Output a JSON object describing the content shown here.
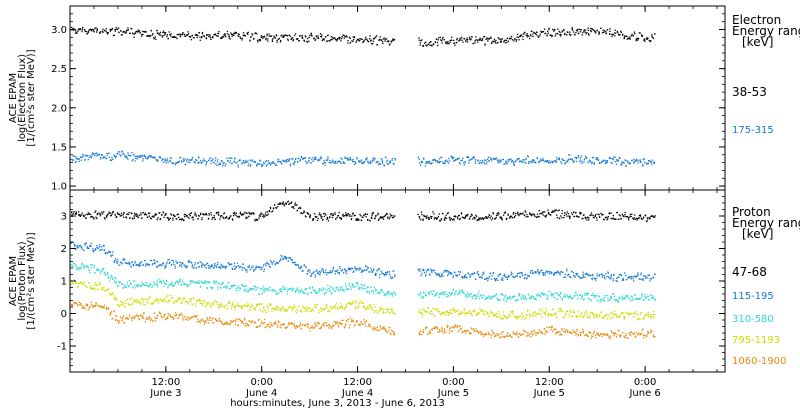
{
  "chart_data": {
    "type": "scatter",
    "xlabel": "hours:minutes, June  3, 2013 - June  6, 2013",
    "x_ticks": [
      {
        "x": "2013-06-03T12:00",
        "time": "12:00",
        "date": "June 3"
      },
      {
        "x": "2013-06-04T00:00",
        "time": "0:00",
        "date": "June 4"
      },
      {
        "x": "2013-06-04T12:00",
        "time": "12:00",
        "date": "June 4"
      },
      {
        "x": "2013-06-05T00:00",
        "time": "0:00",
        "date": "June 5"
      },
      {
        "x": "2013-06-05T12:00",
        "time": "12:00",
        "date": "June 5"
      },
      {
        "x": "2013-06-06T00:00",
        "time": "0:00",
        "date": "June 6"
      }
    ],
    "xlim": [
      "2013-06-03T00:00",
      "2013-06-06T10:00"
    ],
    "data_gap": [
      "2013-06-04T16:30",
      "2013-06-04T19:30"
    ],
    "data_end": "2013-06-06T01:00",
    "panels": [
      {
        "name": "electron",
        "ylabel_lines": [
          "ACE EPAM",
          "log(Electron Flux)",
          "[1/(cm²s ster MeV)]"
        ],
        "ylim": [
          0.95,
          3.3
        ],
        "yticks": [
          "1.0",
          "1.5",
          "2.0",
          "2.5",
          "3.0"
        ],
        "yticks_values": [
          1.0,
          1.5,
          2.0,
          2.5,
          3.0
        ],
        "legend_title": [
          "Electron",
          "Energy range",
          "[keV]"
        ],
        "series": [
          {
            "name": "38-53",
            "color": "#000000",
            "values": [
              [
                "2013-06-03T00:00",
                3.0
              ],
              [
                "2013-06-03T06:00",
                2.98
              ],
              [
                "2013-06-03T12:00",
                2.93
              ],
              [
                "2013-06-03T18:00",
                2.93
              ],
              [
                "2013-06-04T00:00",
                2.91
              ],
              [
                "2013-06-04T06:00",
                2.9
              ],
              [
                "2013-06-04T12:00",
                2.88
              ],
              [
                "2013-06-04T16:00",
                2.86
              ],
              [
                "2013-06-04T20:00",
                2.85
              ],
              [
                "2013-06-05T00:00",
                2.86
              ],
              [
                "2013-06-05T06:00",
                2.88
              ],
              [
                "2013-06-05T12:00",
                2.97
              ],
              [
                "2013-06-05T18:00",
                2.98
              ],
              [
                "2013-06-06T00:00",
                2.9
              ]
            ]
          },
          {
            "name": "175-315",
            "color": "#1478d4",
            "values": [
              [
                "2013-06-03T00:00",
                1.36
              ],
              [
                "2013-06-03T06:00",
                1.4
              ],
              [
                "2013-06-03T12:00",
                1.33
              ],
              [
                "2013-06-03T18:00",
                1.32
              ],
              [
                "2013-06-04T00:00",
                1.3
              ],
              [
                "2013-06-04T06:00",
                1.33
              ],
              [
                "2013-06-04T12:00",
                1.33
              ],
              [
                "2013-06-04T16:00",
                1.32
              ],
              [
                "2013-06-04T20:00",
                1.32
              ],
              [
                "2013-06-05T00:00",
                1.34
              ],
              [
                "2013-06-05T06:00",
                1.32
              ],
              [
                "2013-06-05T12:00",
                1.35
              ],
              [
                "2013-06-05T18:00",
                1.34
              ],
              [
                "2013-06-06T00:00",
                1.3
              ]
            ]
          }
        ]
      },
      {
        "name": "proton",
        "ylabel_lines": [
          "ACE EPAM",
          "log(Proton Flux)",
          "[1/(cm²s ster MeV)]"
        ],
        "ylim": [
          -1.8,
          3.8
        ],
        "yticks": [
          "-1",
          "0",
          "1",
          "2",
          "3"
        ],
        "yticks_values": [
          -1,
          0,
          1,
          2,
          3
        ],
        "legend_title": [
          "Proton",
          "Energy range",
          "[keV]"
        ],
        "series": [
          {
            "name": "47-68",
            "color": "#000000",
            "values": [
              [
                "2013-06-03T00:00",
                3.1
              ],
              [
                "2013-06-03T06:00",
                3.05
              ],
              [
                "2013-06-03T12:00",
                3.0
              ],
              [
                "2013-06-03T18:00",
                3.0
              ],
              [
                "2013-06-04T00:00",
                3.0
              ],
              [
                "2013-06-04T03:00",
                3.5
              ],
              [
                "2013-06-04T06:00",
                3.0
              ],
              [
                "2013-06-04T12:00",
                3.0
              ],
              [
                "2013-06-04T16:00",
                3.0
              ],
              [
                "2013-06-04T20:00",
                3.0
              ],
              [
                "2013-06-05T00:00",
                3.0
              ],
              [
                "2013-06-05T06:00",
                3.0
              ],
              [
                "2013-06-05T12:00",
                3.1
              ],
              [
                "2013-06-05T18:00",
                3.0
              ],
              [
                "2013-06-06T00:00",
                3.0
              ]
            ]
          },
          {
            "name": "115-195",
            "color": "#1478d4",
            "values": [
              [
                "2013-06-03T00:00",
                2.15
              ],
              [
                "2013-06-03T04:00",
                2.0
              ],
              [
                "2013-06-03T06:00",
                1.6
              ],
              [
                "2013-06-03T12:00",
                1.55
              ],
              [
                "2013-06-03T18:00",
                1.5
              ],
              [
                "2013-06-04T00:00",
                1.4
              ],
              [
                "2013-06-04T03:00",
                1.8
              ],
              [
                "2013-06-04T06:00",
                1.25
              ],
              [
                "2013-06-04T12:00",
                1.4
              ],
              [
                "2013-06-04T16:00",
                1.2
              ],
              [
                "2013-06-04T20:00",
                1.3
              ],
              [
                "2013-06-05T00:00",
                1.2
              ],
              [
                "2013-06-05T06:00",
                1.15
              ],
              [
                "2013-06-05T12:00",
                1.3
              ],
              [
                "2013-06-05T18:00",
                1.15
              ],
              [
                "2013-06-06T00:00",
                1.15
              ]
            ]
          },
          {
            "name": "310-580",
            "color": "#2dd6d6",
            "values": [
              [
                "2013-06-03T00:00",
                1.5
              ],
              [
                "2013-06-03T04:00",
                1.35
              ],
              [
                "2013-06-03T06:00",
                0.9
              ],
              [
                "2013-06-03T12:00",
                0.95
              ],
              [
                "2013-06-03T18:00",
                0.9
              ],
              [
                "2013-06-04T00:00",
                0.75
              ],
              [
                "2013-06-04T06:00",
                0.7
              ],
              [
                "2013-06-04T12:00",
                0.85
              ],
              [
                "2013-06-04T16:00",
                0.6
              ],
              [
                "2013-06-04T20:00",
                0.6
              ],
              [
                "2013-06-05T00:00",
                0.65
              ],
              [
                "2013-06-05T06:00",
                0.5
              ],
              [
                "2013-06-05T12:00",
                0.6
              ],
              [
                "2013-06-05T18:00",
                0.5
              ],
              [
                "2013-06-06T00:00",
                0.5
              ]
            ]
          },
          {
            "name": "795-1193",
            "color": "#c8e000",
            "values": [
              [
                "2013-06-03T00:00",
                0.95
              ],
              [
                "2013-06-03T04:00",
                0.85
              ],
              [
                "2013-06-03T06:00",
                0.35
              ],
              [
                "2013-06-03T12:00",
                0.45
              ],
              [
                "2013-06-03T18:00",
                0.3
              ],
              [
                "2013-06-04T00:00",
                0.2
              ],
              [
                "2013-06-04T06:00",
                0.15
              ],
              [
                "2013-06-04T12:00",
                0.3
              ],
              [
                "2013-06-04T16:00",
                0.05
              ],
              [
                "2013-06-04T20:00",
                0.05
              ],
              [
                "2013-06-05T00:00",
                0.1
              ],
              [
                "2013-06-05T06:00",
                -0.05
              ],
              [
                "2013-06-05T12:00",
                0.05
              ],
              [
                "2013-06-05T18:00",
                -0.05
              ],
              [
                "2013-06-06T00:00",
                -0.05
              ]
            ]
          },
          {
            "name": "1060-1900",
            "color": "#e88a10",
            "values": [
              [
                "2013-06-03T00:00",
                0.3
              ],
              [
                "2013-06-03T04:00",
                0.2
              ],
              [
                "2013-06-03T06:00",
                -0.15
              ],
              [
                "2013-06-03T12:00",
                -0.05
              ],
              [
                "2013-06-03T18:00",
                -0.2
              ],
              [
                "2013-06-04T00:00",
                -0.3
              ],
              [
                "2013-06-04T06:00",
                -0.4
              ],
              [
                "2013-06-04T12:00",
                -0.25
              ],
              [
                "2013-06-04T16:00",
                -0.55
              ],
              [
                "2013-06-04T20:00",
                -0.55
              ],
              [
                "2013-06-05T00:00",
                -0.45
              ],
              [
                "2013-06-05T06:00",
                -0.65
              ],
              [
                "2013-06-05T12:00",
                -0.5
              ],
              [
                "2013-06-05T18:00",
                -0.65
              ],
              [
                "2013-06-06T00:00",
                -0.6
              ]
            ]
          }
        ]
      }
    ]
  }
}
